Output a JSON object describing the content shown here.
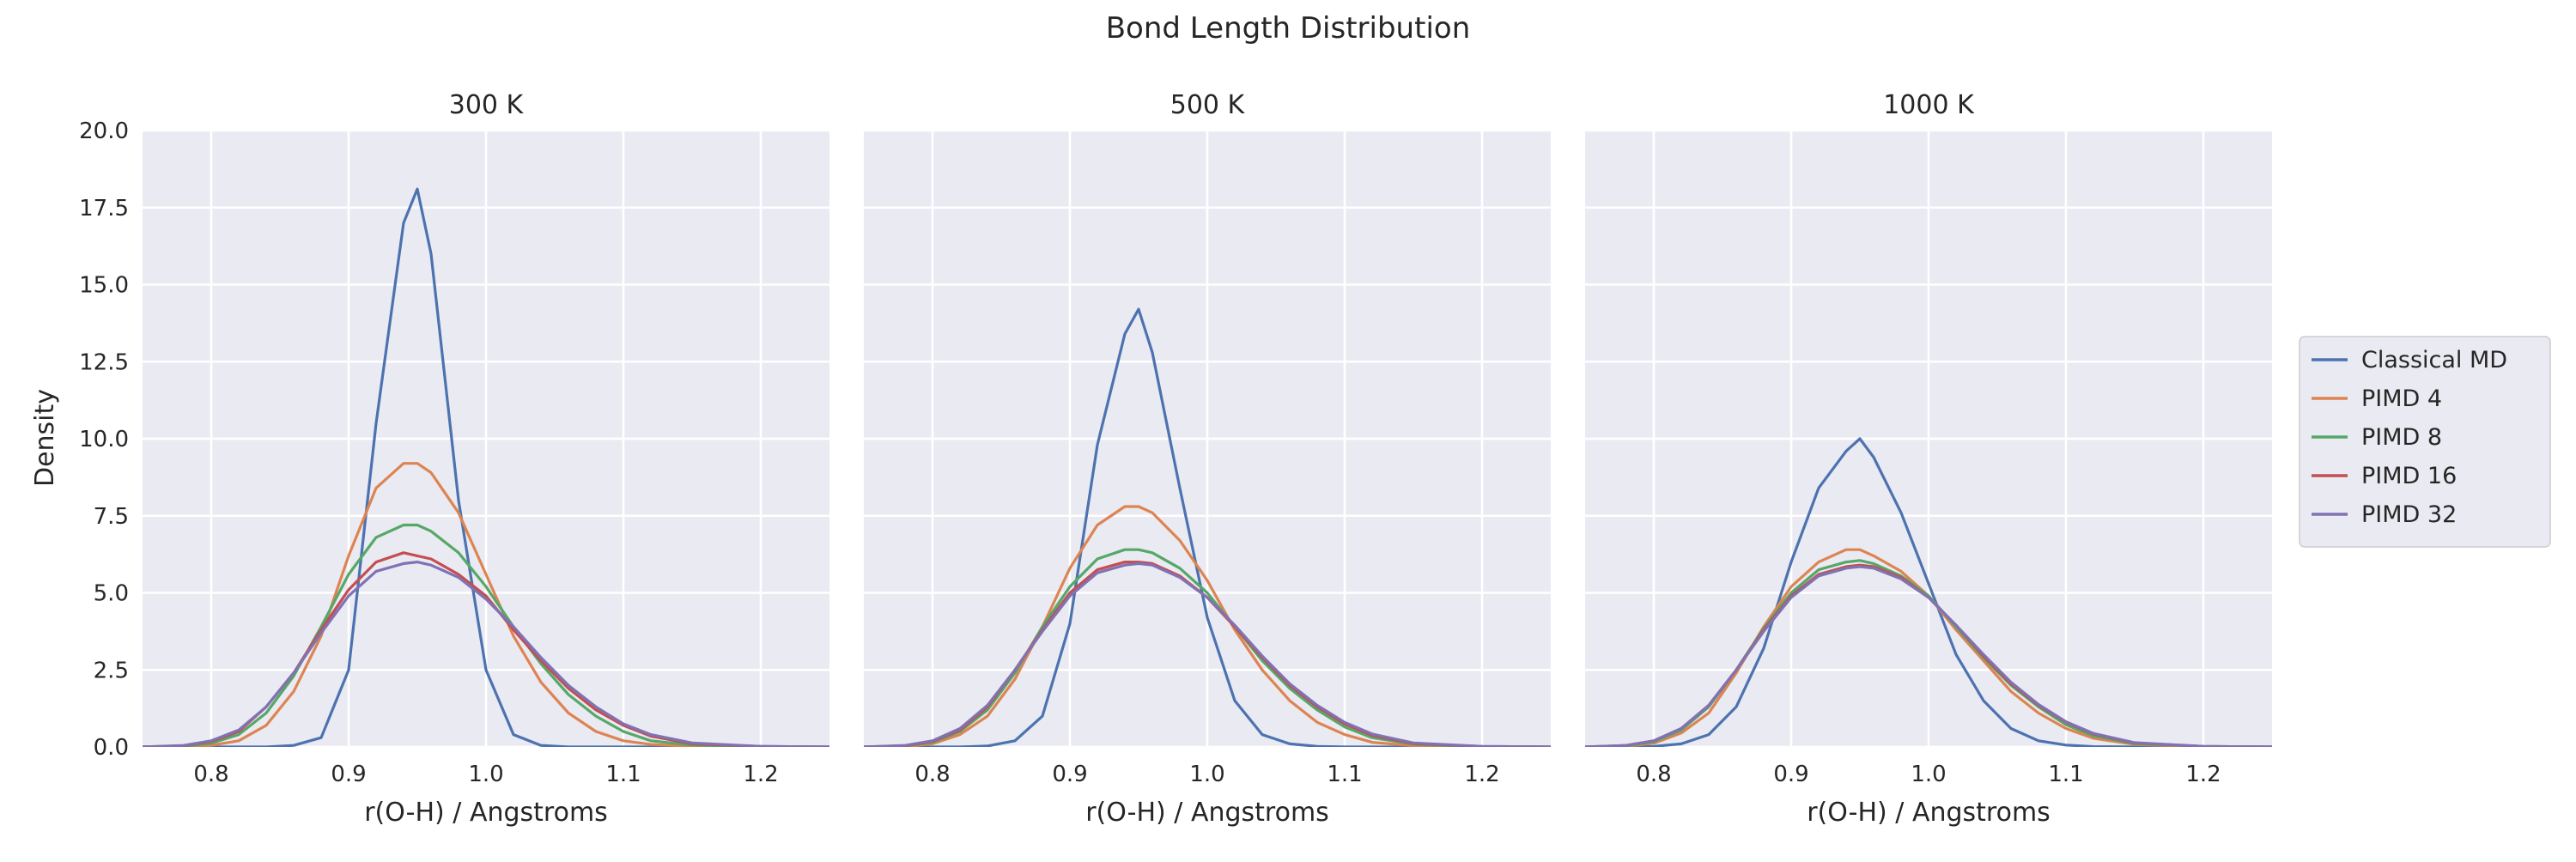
{
  "chart_data": {
    "type": "line",
    "title": "Bond Length Distribution",
    "xlabel": "r(O-H) / Angstroms",
    "ylabel": "Density",
    "xlim": [
      0.75,
      1.25
    ],
    "ylim": [
      0,
      20
    ],
    "x_ticks": [
      0.8,
      0.9,
      1.0,
      1.1,
      1.2
    ],
    "x_tick_labels": [
      "0.8",
      "0.9",
      "1.0",
      "1.1",
      "1.2"
    ],
    "y_ticks": [
      0,
      2.5,
      5,
      7.5,
      10,
      12.5,
      15,
      17.5,
      20
    ],
    "y_tick_labels": [
      "0.0",
      "2.5",
      "5.0",
      "7.5",
      "10.0",
      "12.5",
      "15.0",
      "17.5",
      "20.0"
    ],
    "grid": true,
    "legend_position": "right",
    "x": [
      0.75,
      0.78,
      0.8,
      0.82,
      0.84,
      0.86,
      0.88,
      0.9,
      0.92,
      0.94,
      0.95,
      0.96,
      0.98,
      1.0,
      1.02,
      1.04,
      1.06,
      1.08,
      1.1,
      1.12,
      1.15,
      1.2,
      1.25
    ],
    "series_meta": [
      {
        "name": "Classical MD",
        "color": "#4c72b0"
      },
      {
        "name": "PIMD 4",
        "color": "#dd8452"
      },
      {
        "name": "PIMD 8",
        "color": "#55a868"
      },
      {
        "name": "PIMD 16",
        "color": "#c44e52"
      },
      {
        "name": "PIMD 32",
        "color": "#8172b3"
      }
    ],
    "panels": [
      {
        "title": "300 K",
        "series": [
          {
            "name": "Classical MD",
            "values": [
              0,
              0,
              0,
              0,
              0,
              0.05,
              0.3,
              2.5,
              10.5,
              17.0,
              18.1,
              16.0,
              8.0,
              2.5,
              0.4,
              0.05,
              0,
              0,
              0,
              0,
              0,
              0,
              0
            ]
          },
          {
            "name": "PIMD 4",
            "values": [
              0,
              0,
              0.05,
              0.2,
              0.7,
              1.8,
              3.6,
              6.2,
              8.4,
              9.2,
              9.2,
              8.9,
              7.6,
              5.6,
              3.6,
              2.1,
              1.1,
              0.5,
              0.2,
              0.08,
              0.02,
              0,
              0
            ]
          },
          {
            "name": "PIMD 8",
            "values": [
              0,
              0.02,
              0.12,
              0.4,
              1.1,
              2.3,
              3.9,
              5.6,
              6.8,
              7.2,
              7.2,
              7.0,
              6.3,
              5.2,
              3.9,
              2.7,
              1.7,
              1.0,
              0.5,
              0.2,
              0.06,
              0.01,
              0
            ]
          },
          {
            "name": "PIMD 16",
            "values": [
              0,
              0.04,
              0.18,
              0.5,
              1.3,
              2.4,
              3.8,
              5.1,
              6.0,
              6.3,
              6.2,
              6.1,
              5.6,
              4.9,
              3.8,
              2.8,
              1.9,
              1.2,
              0.7,
              0.35,
              0.1,
              0.02,
              0
            ]
          },
          {
            "name": "PIMD 32",
            "values": [
              0,
              0.05,
              0.2,
              0.55,
              1.3,
              2.4,
              3.7,
              4.9,
              5.7,
              5.95,
              6.0,
              5.9,
              5.5,
              4.8,
              3.9,
              2.9,
              2.0,
              1.3,
              0.75,
              0.4,
              0.13,
              0.02,
              0
            ]
          }
        ]
      },
      {
        "title": "500 K",
        "series": [
          {
            "name": "Classical MD",
            "values": [
              0,
              0,
              0,
              0,
              0.03,
              0.2,
              1.0,
              4.0,
              9.8,
              13.4,
              14.2,
              12.8,
              8.4,
              4.2,
              1.5,
              0.4,
              0.1,
              0.02,
              0,
              0,
              0,
              0,
              0
            ]
          },
          {
            "name": "PIMD 4",
            "values": [
              0,
              0.01,
              0.1,
              0.4,
              1.0,
              2.2,
              3.9,
              5.8,
              7.2,
              7.8,
              7.8,
              7.6,
              6.7,
              5.4,
              3.8,
              2.5,
              1.5,
              0.8,
              0.4,
              0.15,
              0.04,
              0,
              0
            ]
          },
          {
            "name": "PIMD 8",
            "values": [
              0,
              0.03,
              0.15,
              0.5,
              1.2,
              2.4,
              3.9,
              5.2,
              6.1,
              6.4,
              6.4,
              6.3,
              5.8,
              5.0,
              3.9,
              2.8,
              1.9,
              1.2,
              0.65,
              0.3,
              0.09,
              0.01,
              0
            ]
          },
          {
            "name": "PIMD 16",
            "values": [
              0,
              0.04,
              0.18,
              0.55,
              1.3,
              2.5,
              3.8,
              5.0,
              5.75,
              6.0,
              6.0,
              5.95,
              5.55,
              4.85,
              3.9,
              2.9,
              2.0,
              1.3,
              0.75,
              0.38,
              0.11,
              0.02,
              0
            ]
          },
          {
            "name": "PIMD 32",
            "values": [
              0,
              0.05,
              0.2,
              0.6,
              1.35,
              2.5,
              3.75,
              4.9,
              5.65,
              5.9,
              5.95,
              5.9,
              5.5,
              4.85,
              3.95,
              2.95,
              2.05,
              1.35,
              0.8,
              0.42,
              0.13,
              0.02,
              0
            ]
          }
        ]
      },
      {
        "title": "1000 K",
        "series": [
          {
            "name": "Classical MD",
            "values": [
              0,
              0,
              0.02,
              0.1,
              0.4,
              1.3,
              3.2,
              6.0,
              8.4,
              9.6,
              10.0,
              9.4,
              7.6,
              5.3,
              3.0,
              1.5,
              0.6,
              0.2,
              0.06,
              0.01,
              0,
              0,
              0
            ]
          },
          {
            "name": "PIMD 4",
            "values": [
              0,
              0.02,
              0.12,
              0.45,
              1.1,
              2.4,
              3.9,
              5.2,
              6.0,
              6.4,
              6.4,
              6.2,
              5.7,
              4.9,
              3.8,
              2.8,
              1.8,
              1.1,
              0.6,
              0.28,
              0.08,
              0.01,
              0
            ]
          },
          {
            "name": "PIMD 8",
            "values": [
              0,
              0.03,
              0.17,
              0.55,
              1.3,
              2.5,
              3.85,
              5.0,
              5.75,
              6.0,
              6.05,
              5.95,
              5.55,
              4.9,
              3.9,
              2.9,
              2.0,
              1.3,
              0.72,
              0.36,
              0.11,
              0.02,
              0
            ]
          },
          {
            "name": "PIMD 16",
            "values": [
              0,
              0.05,
              0.2,
              0.6,
              1.35,
              2.5,
              3.8,
              4.9,
              5.6,
              5.85,
              5.9,
              5.85,
              5.5,
              4.85,
              3.95,
              2.95,
              2.05,
              1.35,
              0.8,
              0.42,
              0.13,
              0.02,
              0
            ]
          },
          {
            "name": "PIMD 32",
            "values": [
              0,
              0.05,
              0.2,
              0.6,
              1.35,
              2.5,
              3.75,
              4.85,
              5.55,
              5.8,
              5.85,
              5.8,
              5.45,
              4.85,
              3.95,
              3.0,
              2.1,
              1.38,
              0.82,
              0.44,
              0.14,
              0.02,
              0
            ]
          }
        ]
      }
    ]
  }
}
